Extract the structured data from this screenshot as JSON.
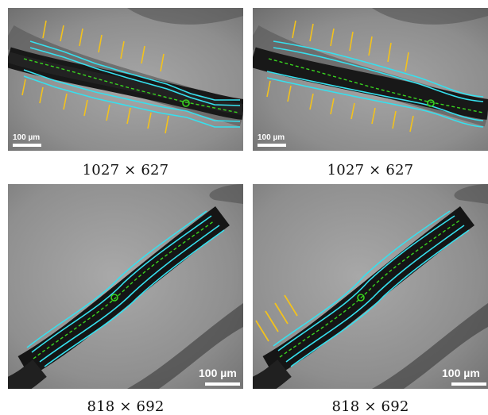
{
  "panels": [
    {
      "caption": "1027 × 627",
      "scale_label": "100 µm"
    },
    {
      "caption": "1027 × 627",
      "scale_label": "100 µm"
    },
    {
      "caption": "818 × 692",
      "scale_label": "100 µm"
    },
    {
      "caption": "818 × 692",
      "scale_label": "100 µm"
    }
  ],
  "colors": {
    "boundary": "#36e0ee",
    "centerline": "#39d51f",
    "arrow": "#f3c21c",
    "scale_bar": "#ffffff"
  }
}
